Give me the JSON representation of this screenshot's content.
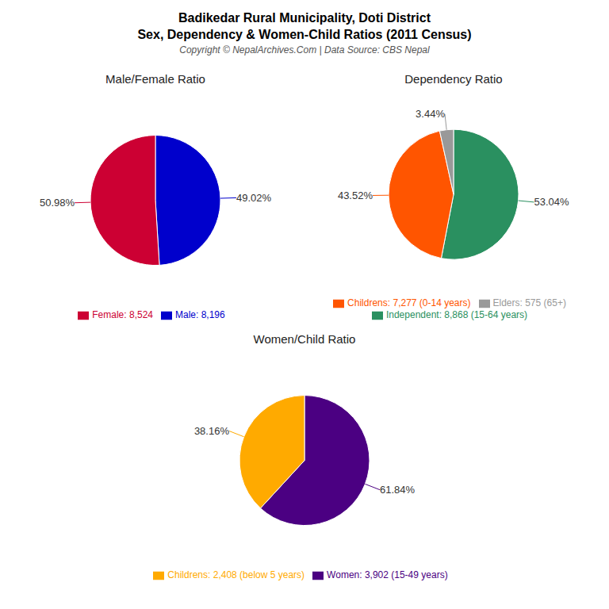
{
  "title": "Badikedar Rural Municipality, Doti District",
  "subtitle": "Sex, Dependency & Women-Child Ratios (2011 Census)",
  "annotations": [
    "Copyright © NepalArchives.Com | Data Source: CBS Nepal"
  ],
  "chart_data": [
    {
      "type": "pie",
      "title": "Male/Female Ratio",
      "categories": [
        "Male: 8,196",
        "Female: 8,524"
      ],
      "values": [
        49.02,
        50.98
      ],
      "value_labels": [
        "49.02%",
        "50.98%"
      ],
      "colors": [
        "#0000cc",
        "#cc0033"
      ],
      "data_labels": true
    },
    {
      "type": "pie",
      "title": "Dependency Ratio",
      "categories": [
        "Independent: 8,868 (15-64 years)",
        "Childrens: 7,277 (0-14 years)",
        "Elders: 575 (65+)"
      ],
      "values": [
        53.04,
        43.52,
        3.44
      ],
      "value_labels": [
        "53.04%",
        "43.52%",
        "3.44%"
      ],
      "colors": [
        "#2a9060",
        "#ff5500",
        "#999999"
      ],
      "data_labels": true
    },
    {
      "type": "pie",
      "title": "Women/Child Ratio",
      "categories": [
        "Women: 3,902 (15-49 years)",
        "Childrens: 2,408 (below 5 years)"
      ],
      "values": [
        61.84,
        38.16
      ],
      "value_labels": [
        "61.84%",
        "38.16%"
      ],
      "colors": [
        "#4b0082",
        "#ffaa00"
      ],
      "data_labels": true
    }
  ]
}
